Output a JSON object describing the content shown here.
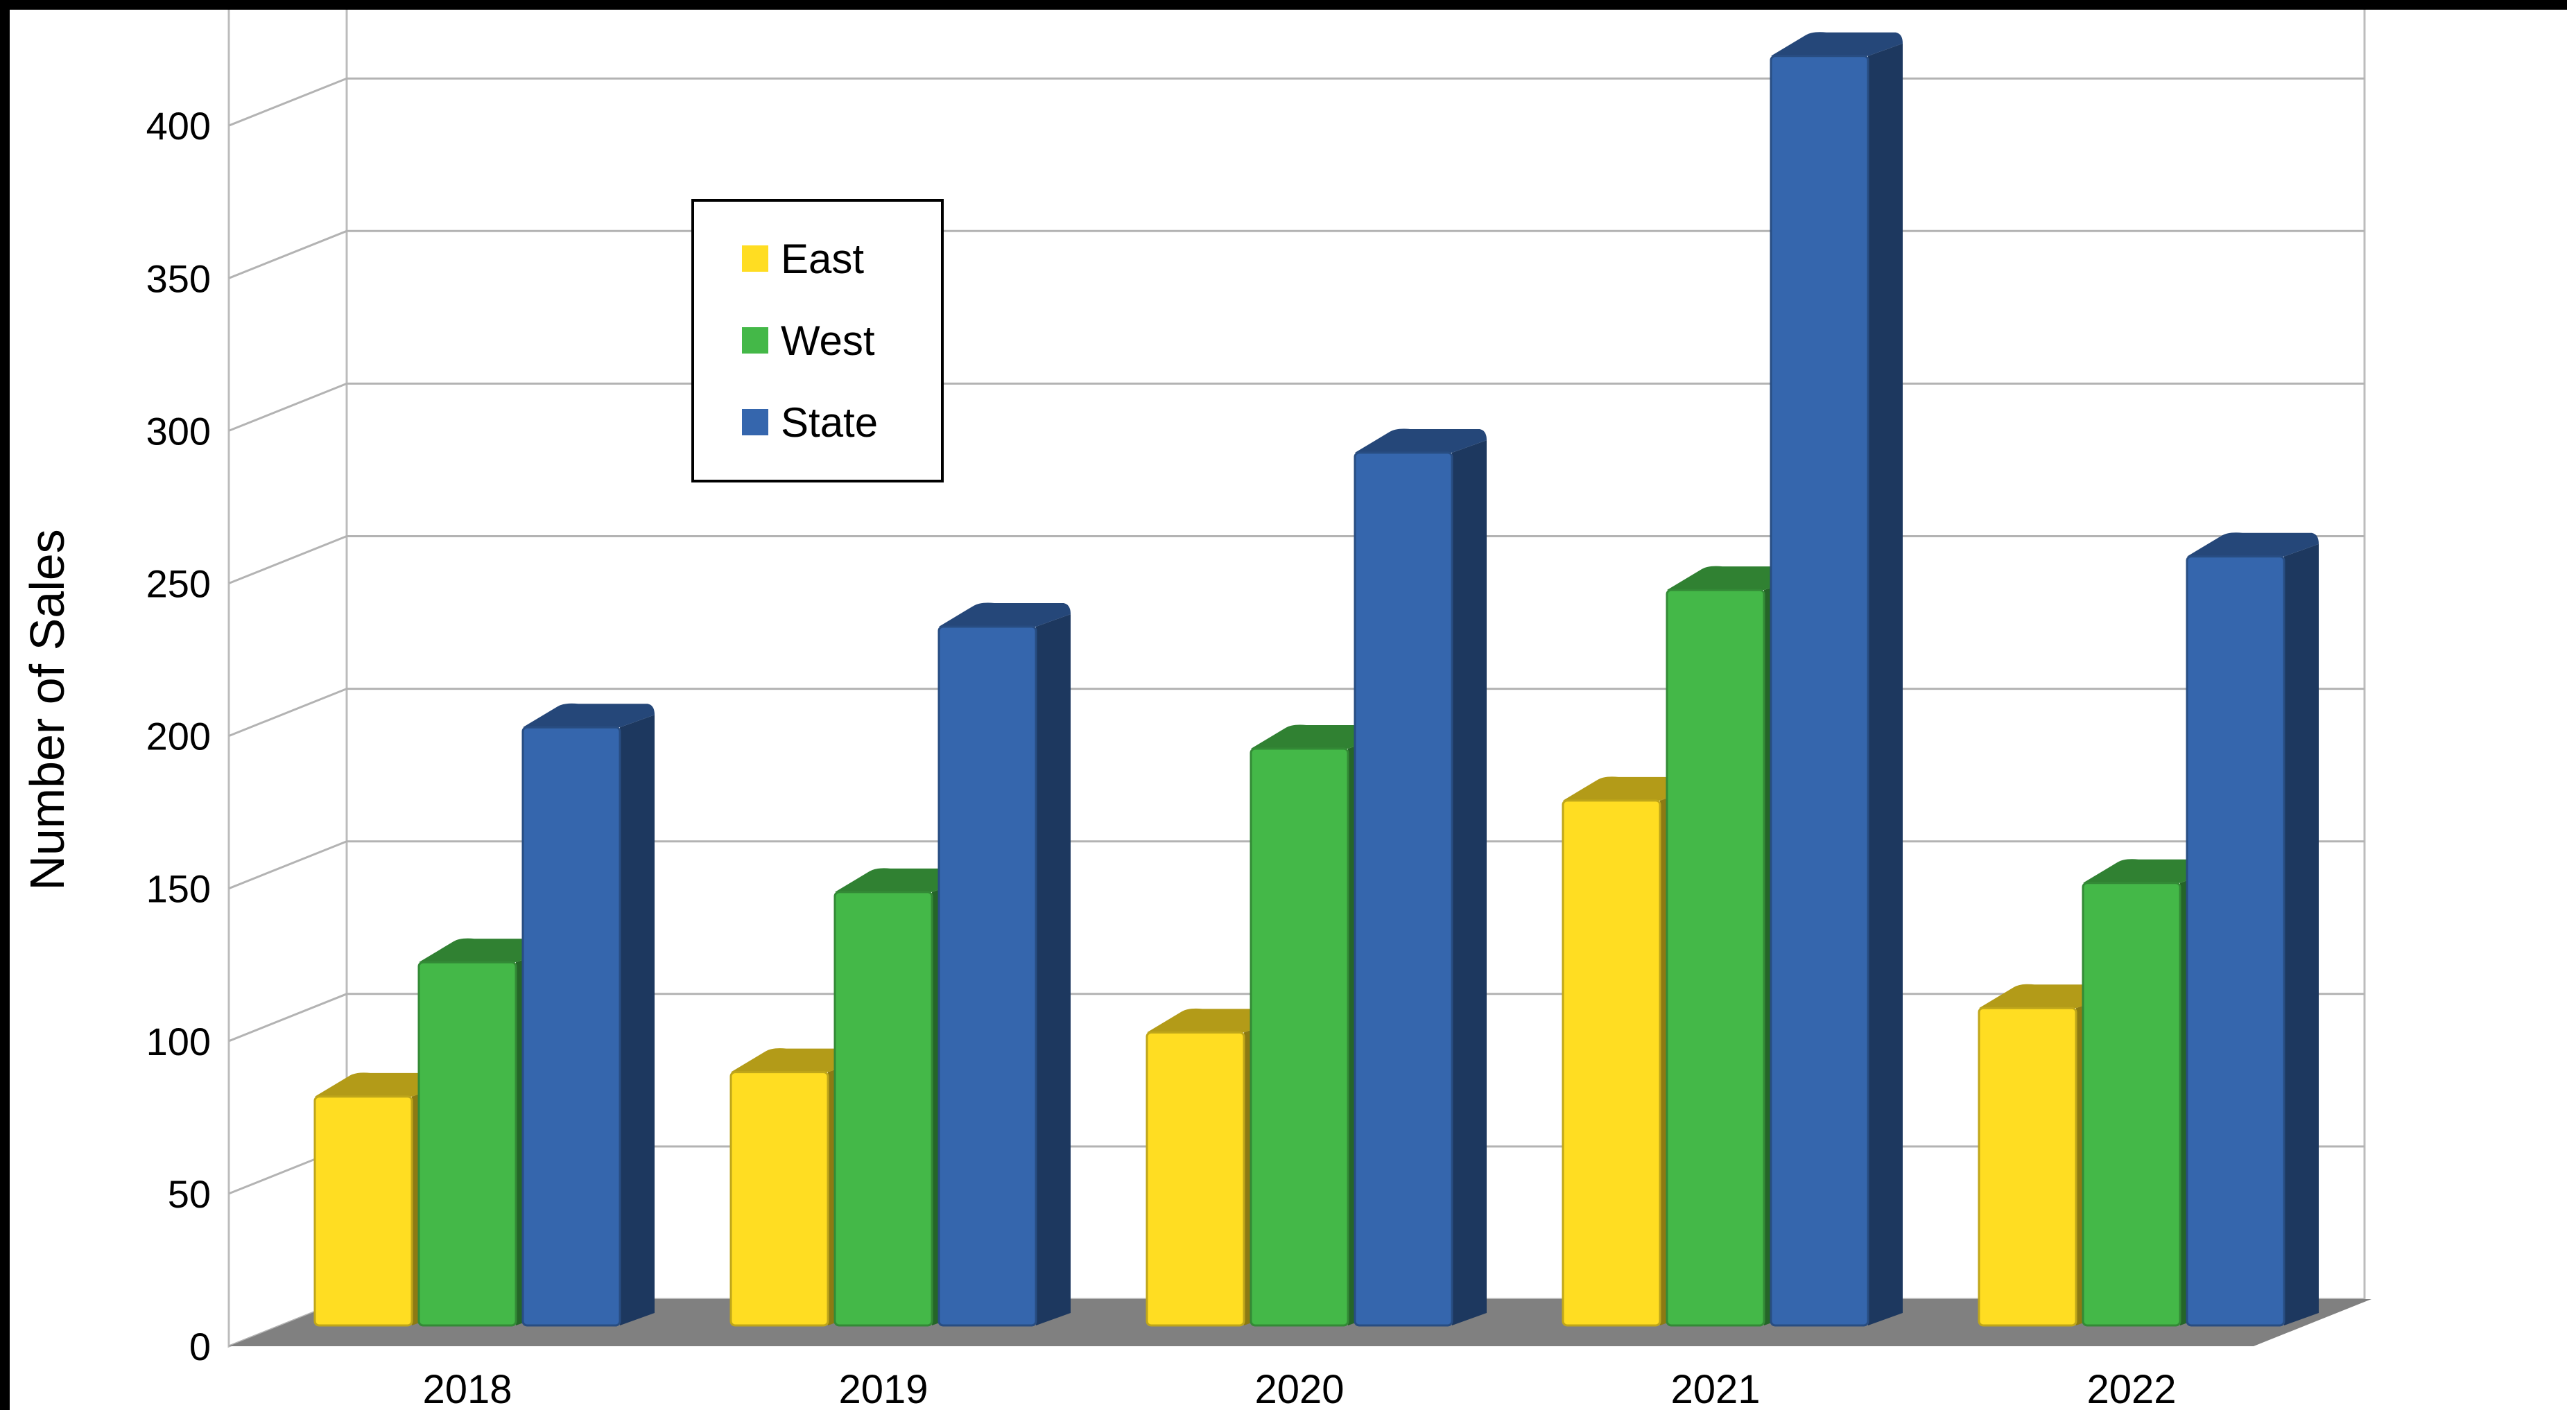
{
  "chart_data": {
    "type": "bar",
    "title": "",
    "xlabel": "",
    "ylabel": "Number of Sales",
    "ylim": [
      0,
      450
    ],
    "yticks": [
      "0",
      "50",
      "100",
      "150",
      "200",
      "250",
      "300",
      "350",
      "400",
      "450"
    ],
    "grid": true,
    "legend_position": "top-left",
    "categories": [
      "2018",
      "2019",
      "2020",
      "2021",
      "2022"
    ],
    "series": [
      {
        "name": "East",
        "color": "#ffdd22",
        "values": [
          75,
          83,
          96,
          172,
          104
        ]
      },
      {
        "name": "West",
        "color": "#44b848",
        "values": [
          119,
          142,
          189,
          241,
          145
        ]
      },
      {
        "name": "State",
        "color": "#3566ad",
        "values": [
          196,
          229,
          286,
          416,
          252
        ]
      }
    ]
  }
}
